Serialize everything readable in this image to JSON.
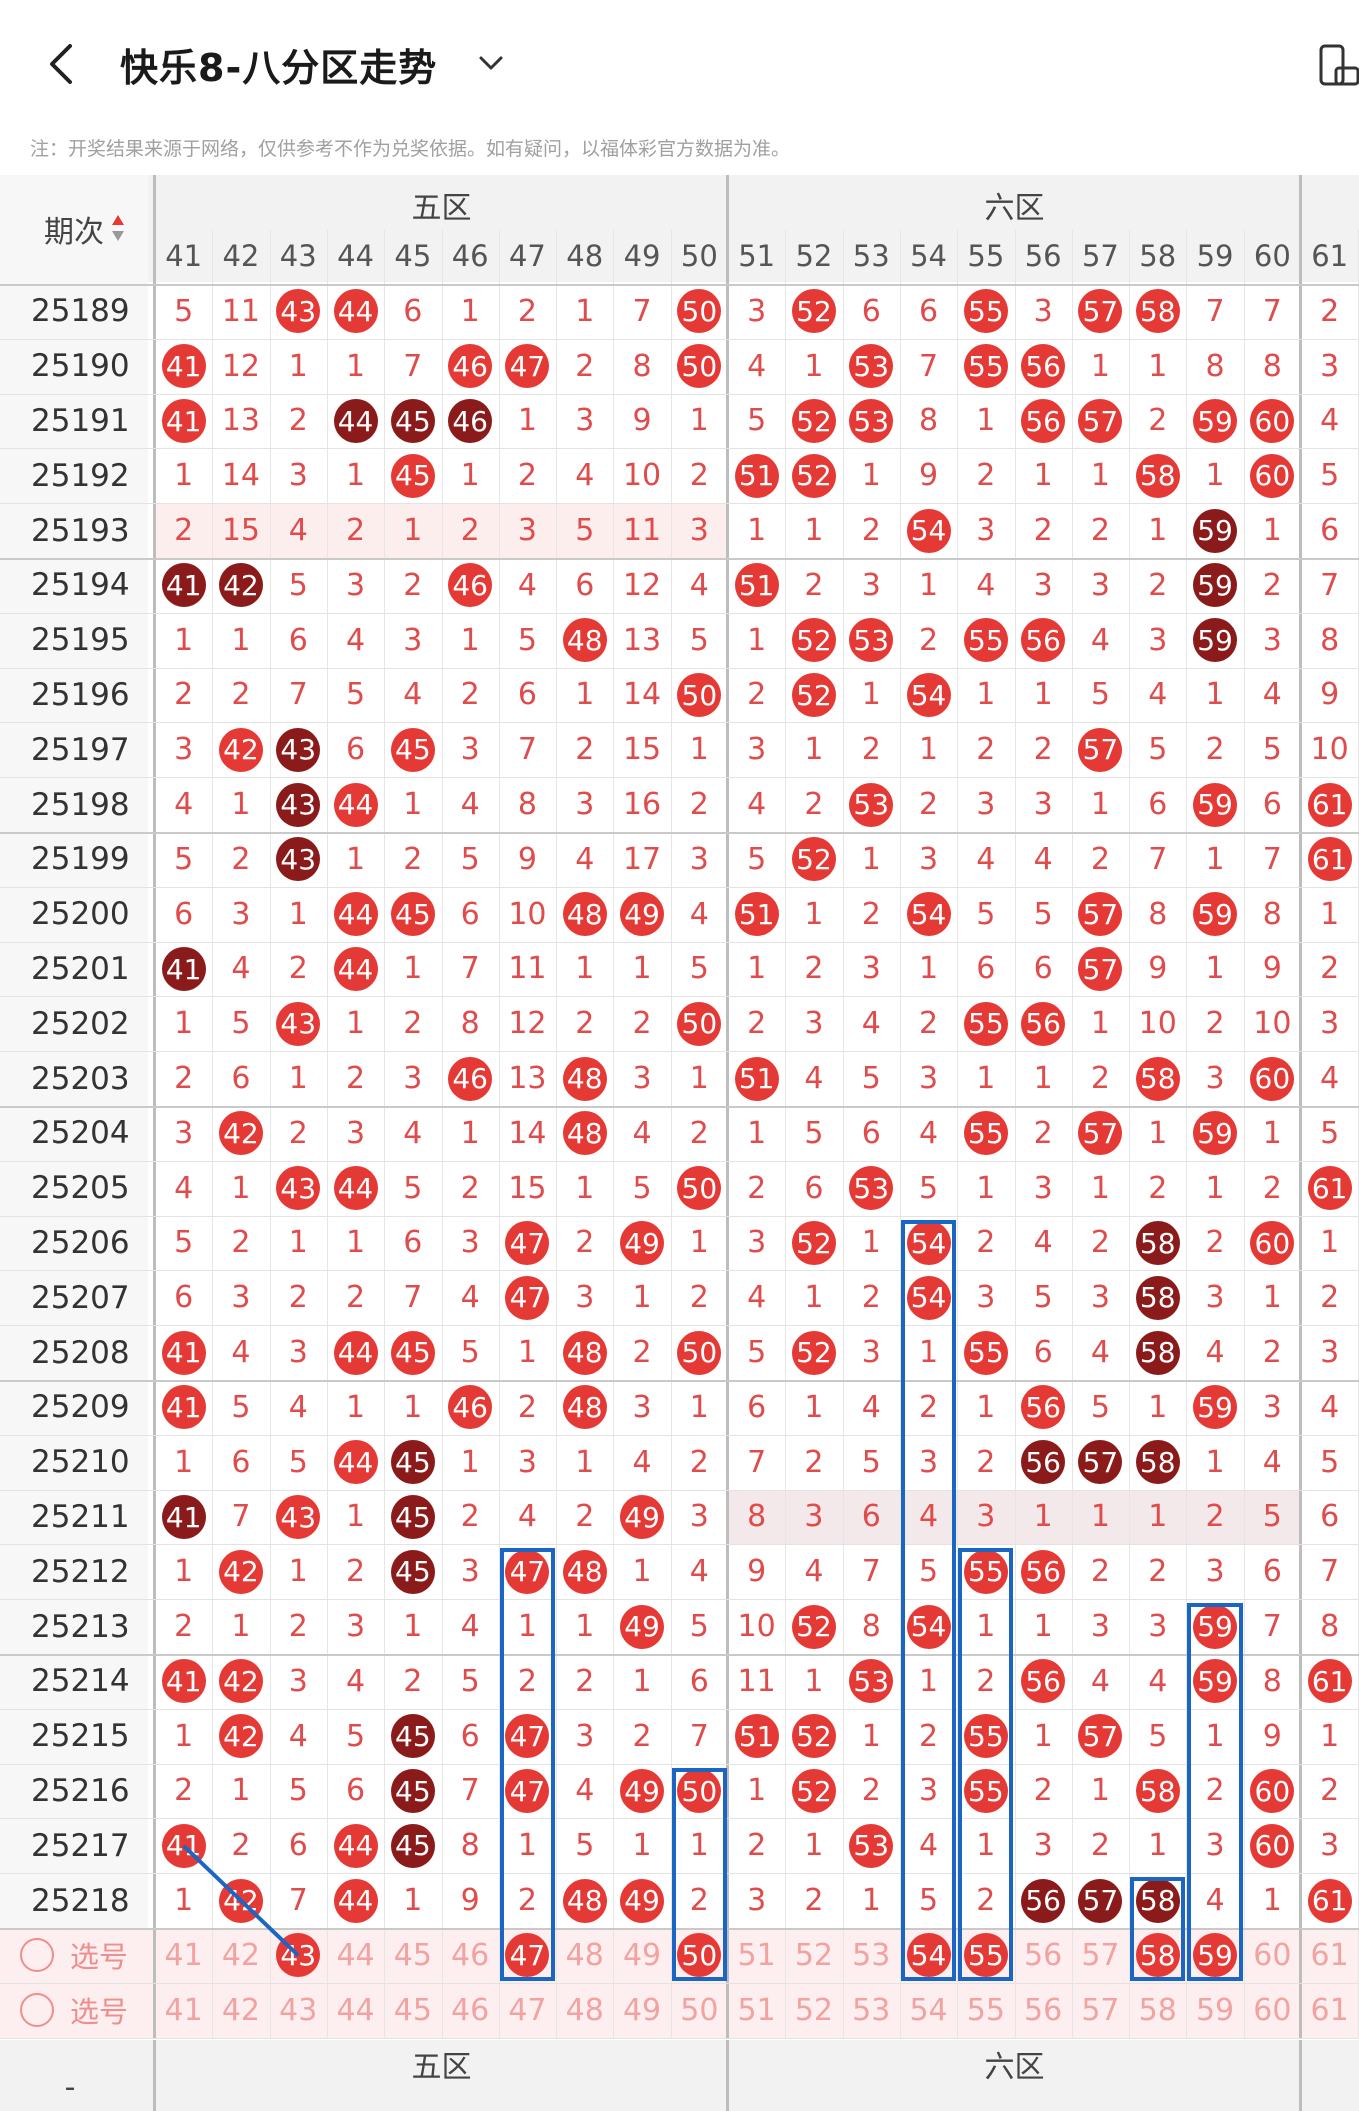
{
  "header": {
    "title": "快乐8-八分区走势",
    "back_icon": "chevron-left-icon",
    "dropdown_icon": "chevron-down-icon",
    "right_icon": "phone-rotate-icon"
  },
  "note": "注：开奖结果来源于网络，仅供参考不作为兑奖依据。如有疑问，以福体彩官方数据为准。",
  "table": {
    "issue_header": "期次",
    "zones": [
      "五区",
      "六区"
    ],
    "columns": [
      41,
      42,
      43,
      44,
      45,
      46,
      47,
      48,
      49,
      50,
      51,
      52,
      53,
      54,
      55,
      56,
      57,
      58,
      59,
      60,
      61
    ],
    "rows": [
      {
        "issue": "25189",
        "cells": [
          5,
          11,
          "43",
          "44",
          6,
          1,
          2,
          1,
          7,
          "50",
          3,
          "52",
          6,
          6,
          "55",
          3,
          "57",
          "58",
          7,
          7,
          2
        ]
      },
      {
        "issue": "25190",
        "cells": [
          "41",
          12,
          1,
          1,
          7,
          "46",
          "47",
          2,
          8,
          "50",
          4,
          1,
          "53",
          7,
          "55",
          "56",
          1,
          1,
          8,
          8,
          3
        ]
      },
      {
        "issue": "25191",
        "cells": [
          "41",
          13,
          2,
          "44d",
          "45d",
          "46d",
          1,
          3,
          9,
          1,
          5,
          "52",
          "53",
          8,
          1,
          "56",
          "57",
          2,
          "59",
          "60",
          4
        ]
      },
      {
        "issue": "25192",
        "cells": [
          1,
          14,
          3,
          1,
          "45",
          1,
          2,
          4,
          10,
          2,
          "51",
          "52",
          1,
          9,
          2,
          1,
          1,
          "58",
          1,
          "60",
          5
        ]
      },
      {
        "issue": "25193",
        "cells": [
          2,
          15,
          4,
          2,
          1,
          2,
          3,
          5,
          11,
          3,
          1,
          1,
          2,
          "54",
          3,
          2,
          2,
          1,
          "59d",
          1,
          6
        ]
      },
      {
        "issue": "25194",
        "cells": [
          "41d",
          "42d",
          5,
          3,
          2,
          "46",
          4,
          6,
          12,
          4,
          "51",
          2,
          3,
          1,
          4,
          3,
          3,
          2,
          "59d",
          2,
          7
        ]
      },
      {
        "issue": "25195",
        "cells": [
          1,
          1,
          6,
          4,
          3,
          1,
          5,
          "48",
          13,
          5,
          1,
          "52",
          "53",
          2,
          "55",
          "56",
          4,
          3,
          "59d",
          3,
          8
        ]
      },
      {
        "issue": "25196",
        "cells": [
          2,
          2,
          7,
          5,
          4,
          2,
          6,
          1,
          14,
          "50",
          2,
          "52",
          1,
          "54",
          1,
          1,
          5,
          4,
          1,
          4,
          9
        ]
      },
      {
        "issue": "25197",
        "cells": [
          3,
          "42",
          "43d",
          6,
          "45",
          3,
          7,
          2,
          15,
          1,
          3,
          1,
          2,
          1,
          2,
          2,
          "57",
          5,
          2,
          5,
          10
        ]
      },
      {
        "issue": "25198",
        "cells": [
          4,
          1,
          "43d",
          "44",
          1,
          4,
          8,
          3,
          16,
          2,
          4,
          2,
          "53",
          2,
          3,
          3,
          1,
          6,
          "59",
          6,
          "61"
        ]
      },
      {
        "issue": "25199",
        "cells": [
          5,
          2,
          "43d",
          1,
          2,
          5,
          9,
          4,
          17,
          3,
          5,
          "52",
          1,
          3,
          4,
          4,
          2,
          7,
          1,
          7,
          "61"
        ]
      },
      {
        "issue": "25200",
        "cells": [
          6,
          3,
          1,
          "44",
          "45",
          6,
          10,
          "48",
          "49",
          4,
          "51",
          1,
          2,
          "54",
          5,
          5,
          "57",
          8,
          "59",
          8,
          1
        ]
      },
      {
        "issue": "25201",
        "cells": [
          "41d",
          4,
          2,
          "44",
          1,
          7,
          11,
          1,
          1,
          5,
          1,
          2,
          3,
          1,
          6,
          6,
          "57",
          9,
          1,
          9,
          2
        ]
      },
      {
        "issue": "25202",
        "cells": [
          1,
          5,
          "43",
          1,
          2,
          8,
          12,
          2,
          2,
          "50",
          2,
          3,
          4,
          2,
          "55",
          "56",
          1,
          10,
          2,
          10,
          3
        ]
      },
      {
        "issue": "25203",
        "cells": [
          2,
          6,
          1,
          2,
          3,
          "46",
          13,
          "48",
          3,
          1,
          "51",
          4,
          5,
          3,
          1,
          1,
          2,
          "58",
          3,
          "60",
          4
        ]
      },
      {
        "issue": "25204",
        "cells": [
          3,
          "42",
          2,
          3,
          4,
          1,
          14,
          "48",
          4,
          2,
          1,
          5,
          6,
          4,
          "55",
          2,
          "57",
          1,
          "59",
          1,
          5
        ]
      },
      {
        "issue": "25205",
        "cells": [
          4,
          1,
          "43",
          "44",
          5,
          2,
          15,
          1,
          5,
          "50",
          2,
          6,
          "53",
          5,
          1,
          3,
          1,
          2,
          1,
          2,
          "61"
        ]
      },
      {
        "issue": "25206",
        "cells": [
          5,
          2,
          1,
          1,
          6,
          3,
          "47",
          2,
          "49",
          1,
          3,
          "52",
          1,
          "54",
          2,
          4,
          2,
          "58d",
          2,
          "60",
          1
        ]
      },
      {
        "issue": "25207",
        "cells": [
          6,
          3,
          2,
          2,
          7,
          4,
          "47",
          3,
          1,
          2,
          4,
          1,
          2,
          "54",
          3,
          5,
          3,
          "58d",
          3,
          1,
          2
        ]
      },
      {
        "issue": "25208",
        "cells": [
          "41",
          4,
          3,
          "44",
          "45",
          5,
          1,
          "48",
          2,
          "50",
          5,
          "52",
          3,
          1,
          "55",
          6,
          4,
          "58d",
          4,
          2,
          3
        ]
      },
      {
        "issue": "25209",
        "cells": [
          "41",
          5,
          4,
          1,
          1,
          "46",
          2,
          "48",
          3,
          1,
          6,
          1,
          4,
          2,
          1,
          "56",
          5,
          1,
          "59",
          3,
          4
        ]
      },
      {
        "issue": "25210",
        "cells": [
          1,
          6,
          5,
          "44",
          "45d",
          1,
          3,
          1,
          4,
          2,
          7,
          2,
          5,
          3,
          2,
          "56d",
          "57d",
          "58d",
          1,
          4,
          5
        ]
      },
      {
        "issue": "25211",
        "cells": [
          "41d",
          7,
          "43",
          1,
          "45d",
          2,
          4,
          2,
          "49",
          3,
          8,
          3,
          6,
          4,
          3,
          1,
          1,
          1,
          2,
          5,
          6
        ]
      },
      {
        "issue": "25212",
        "cells": [
          1,
          "42",
          1,
          2,
          "45d",
          3,
          "47",
          "48",
          1,
          4,
          9,
          4,
          7,
          5,
          "55",
          "56",
          2,
          2,
          3,
          6,
          7
        ]
      },
      {
        "issue": "25213",
        "cells": [
          2,
          1,
          2,
          3,
          1,
          4,
          1,
          1,
          "49",
          5,
          10,
          "52",
          8,
          "54",
          1,
          1,
          3,
          3,
          "59",
          7,
          8
        ]
      },
      {
        "issue": "25214",
        "cells": [
          "41",
          "42",
          3,
          4,
          2,
          5,
          2,
          2,
          1,
          6,
          11,
          1,
          "53",
          1,
          2,
          "56",
          4,
          4,
          "59",
          8,
          "61"
        ]
      },
      {
        "issue": "25215",
        "cells": [
          1,
          "42",
          4,
          5,
          "45d",
          6,
          "47",
          3,
          2,
          7,
          "51",
          "52",
          1,
          2,
          "55",
          1,
          "57",
          5,
          1,
          9,
          1
        ]
      },
      {
        "issue": "25216",
        "cells": [
          2,
          1,
          5,
          6,
          "45d",
          7,
          "47",
          4,
          "49",
          "50",
          1,
          "52",
          2,
          3,
          "55",
          2,
          1,
          "58",
          2,
          "60",
          2
        ]
      },
      {
        "issue": "25217",
        "cells": [
          "41",
          2,
          6,
          "44",
          "45d",
          8,
          1,
          5,
          1,
          1,
          2,
          1,
          "53",
          4,
          1,
          3,
          2,
          1,
          3,
          "60",
          3
        ]
      },
      {
        "issue": "25218",
        "cells": [
          1,
          "42",
          7,
          "44",
          1,
          9,
          2,
          "48",
          "49",
          2,
          3,
          2,
          1,
          5,
          2,
          "56d",
          "57d",
          "58d",
          4,
          1,
          "61"
        ]
      }
    ],
    "pick_rows": [
      {
        "label": "选号",
        "picked": [
          43,
          47,
          50,
          54,
          55,
          58,
          59
        ]
      },
      {
        "label": "选号",
        "picked": []
      }
    ],
    "footer_zones": [
      "五区",
      "六区"
    ],
    "footer_left": "-"
  },
  "colors": {
    "ball_red": "#e53935",
    "ball_dark": "#8b1a1a",
    "miss_text": "#e04b4b",
    "box_blue": "#1a66c2"
  }
}
